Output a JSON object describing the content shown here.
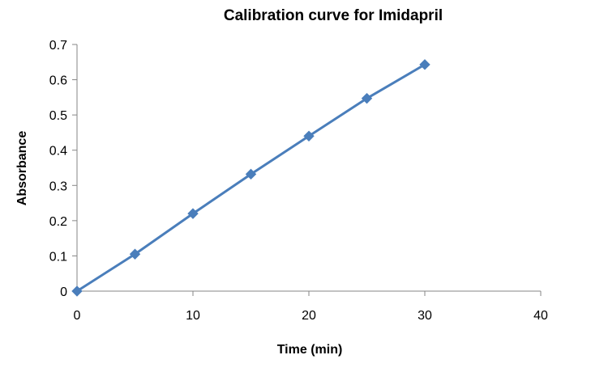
{
  "chart_data": {
    "type": "line",
    "title": "Calibration curve for Imidapril",
    "xlabel": "Time (min)",
    "ylabel": "Absorbance",
    "xlim": [
      0,
      40
    ],
    "ylim": [
      0,
      0.7
    ],
    "x_ticks": [
      "0",
      "10",
      "20",
      "30",
      "40"
    ],
    "y_ticks": [
      "0",
      "0.1",
      "0.2",
      "0.3",
      "0.4",
      "0.5",
      "0.6",
      "0.7"
    ],
    "grid": false,
    "legend": "none",
    "marker": "diamond",
    "series": [
      {
        "color": "#4a7ebb",
        "x": [
          0,
          5,
          10,
          15,
          20,
          25,
          30
        ],
        "y": [
          0,
          0.105,
          0.22,
          0.332,
          0.44,
          0.547,
          0.643
        ]
      }
    ]
  }
}
